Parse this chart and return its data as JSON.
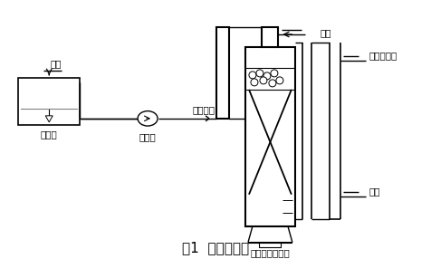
{
  "title": "图1  工艺流程图",
  "title_fontsize": 11,
  "labels": {
    "inlet_water": "进水",
    "inlet_tank": "进水箱",
    "metering_pump": "计量泵",
    "backwash_water_label": "反冲洗水",
    "bio_carbon_column": "生物活性炭滤柱",
    "air": "空气",
    "backwash_out": "反冲洗出水",
    "outlet": "出水"
  },
  "bg_color": "#ffffff",
  "line_color": "#000000",
  "font_size": 7.5
}
